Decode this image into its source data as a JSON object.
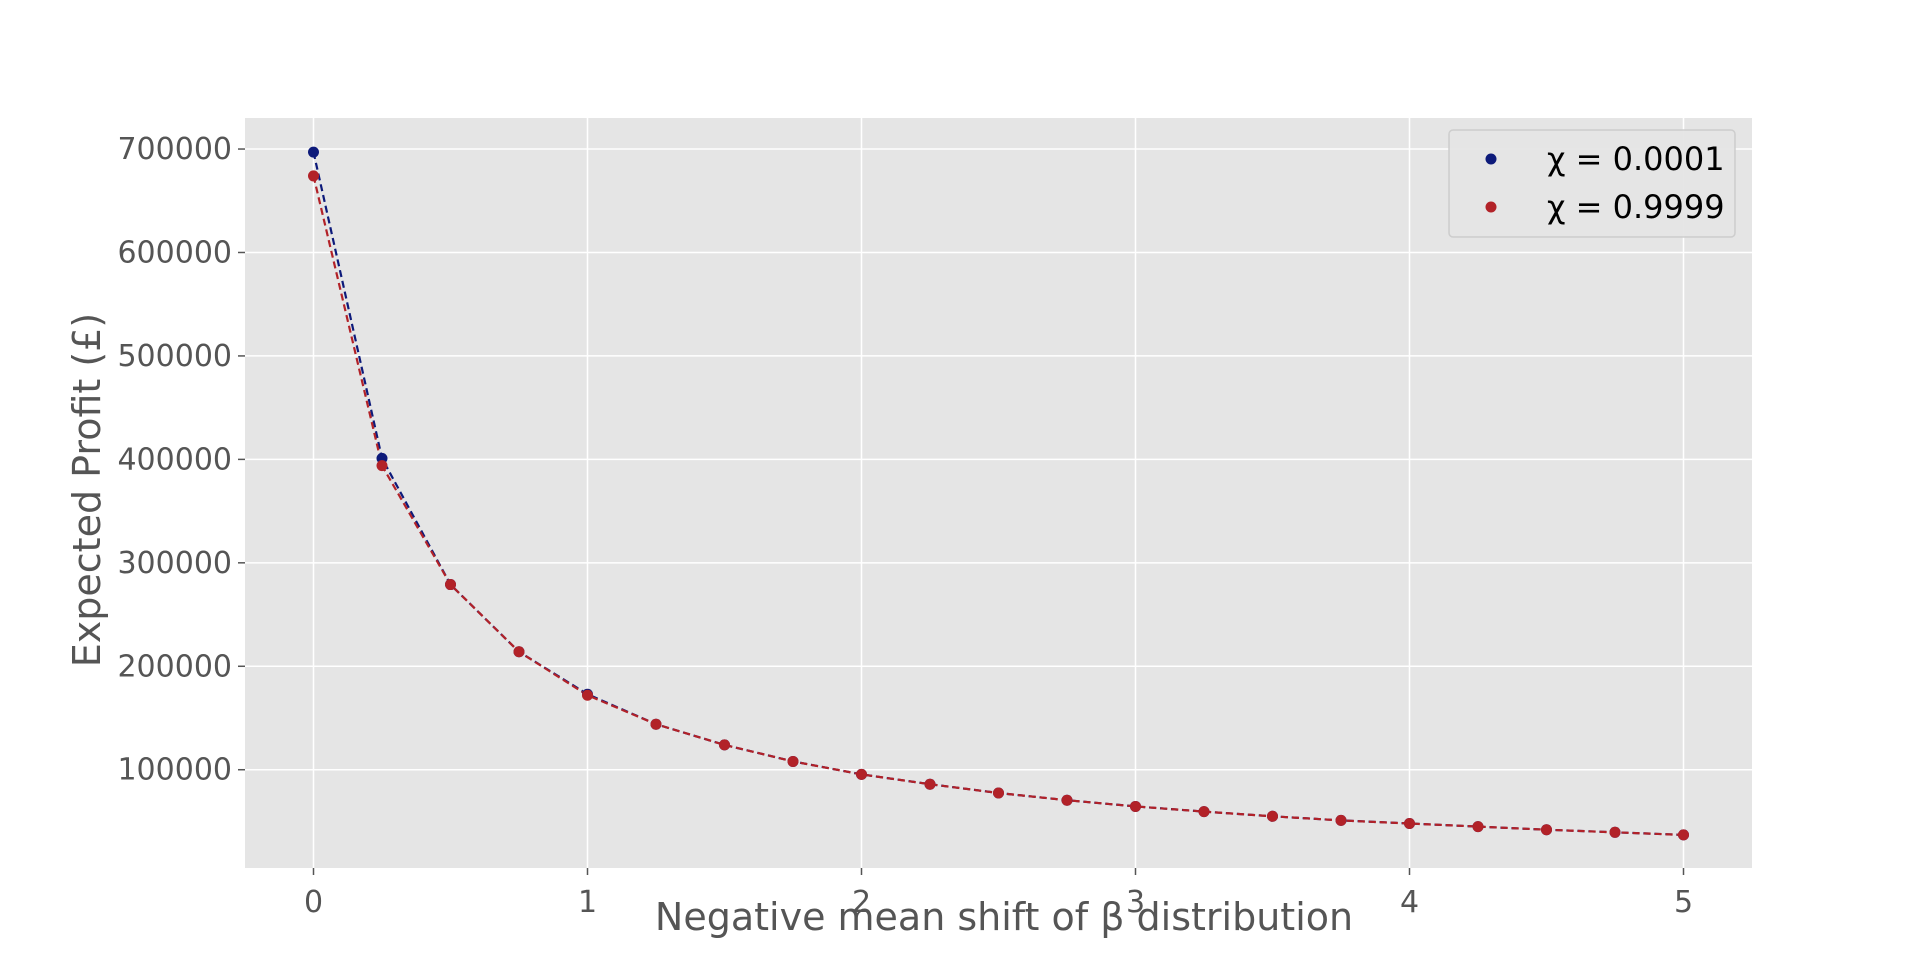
{
  "chart_data": {
    "type": "line",
    "title": "",
    "xlabel": "Negative mean shift of β distribution",
    "ylabel": "Expected Profit (£)",
    "xlim": [
      -0.25,
      5.25
    ],
    "ylim": [
      5000,
      730000
    ],
    "x_ticks": [
      0,
      1,
      2,
      3,
      4,
      5
    ],
    "y_ticks": [
      100000,
      200000,
      300000,
      400000,
      500000,
      600000,
      700000
    ],
    "x_tick_labels": [
      "0",
      "1",
      "2",
      "3",
      "4",
      "5"
    ],
    "y_tick_labels": [
      "100000",
      "200000",
      "300000",
      "400000",
      "500000",
      "600000",
      "700000"
    ],
    "grid": true,
    "background": "#e5e5e5",
    "grid_color": "#ffffff",
    "legend_position": "top-right",
    "line_style": "dashed",
    "x": [
      0,
      0.25,
      0.5,
      0.75,
      1,
      1.25,
      1.5,
      1.75,
      2,
      2.25,
      2.5,
      2.75,
      3,
      3.25,
      3.5,
      3.75,
      4,
      4.25,
      4.5,
      4.75,
      5
    ],
    "series": [
      {
        "name": "χ = 0.0001",
        "color": "#0d1a7a",
        "values": [
          697000,
          401000,
          279000,
          214000,
          173000,
          144000,
          124000,
          108000,
          95500,
          86000,
          77500,
          70500,
          64500,
          59500,
          55000,
          51000,
          48000,
          45000,
          42000,
          39500,
          37000
        ]
      },
      {
        "name": "χ = 0.9999",
        "color": "#b22228",
        "values": [
          674000,
          394000,
          279000,
          214000,
          172000,
          144000,
          124000,
          108000,
          95500,
          86000,
          77500,
          70500,
          64500,
          59500,
          55000,
          51000,
          48000,
          45000,
          42000,
          39500,
          37000
        ]
      }
    ]
  }
}
